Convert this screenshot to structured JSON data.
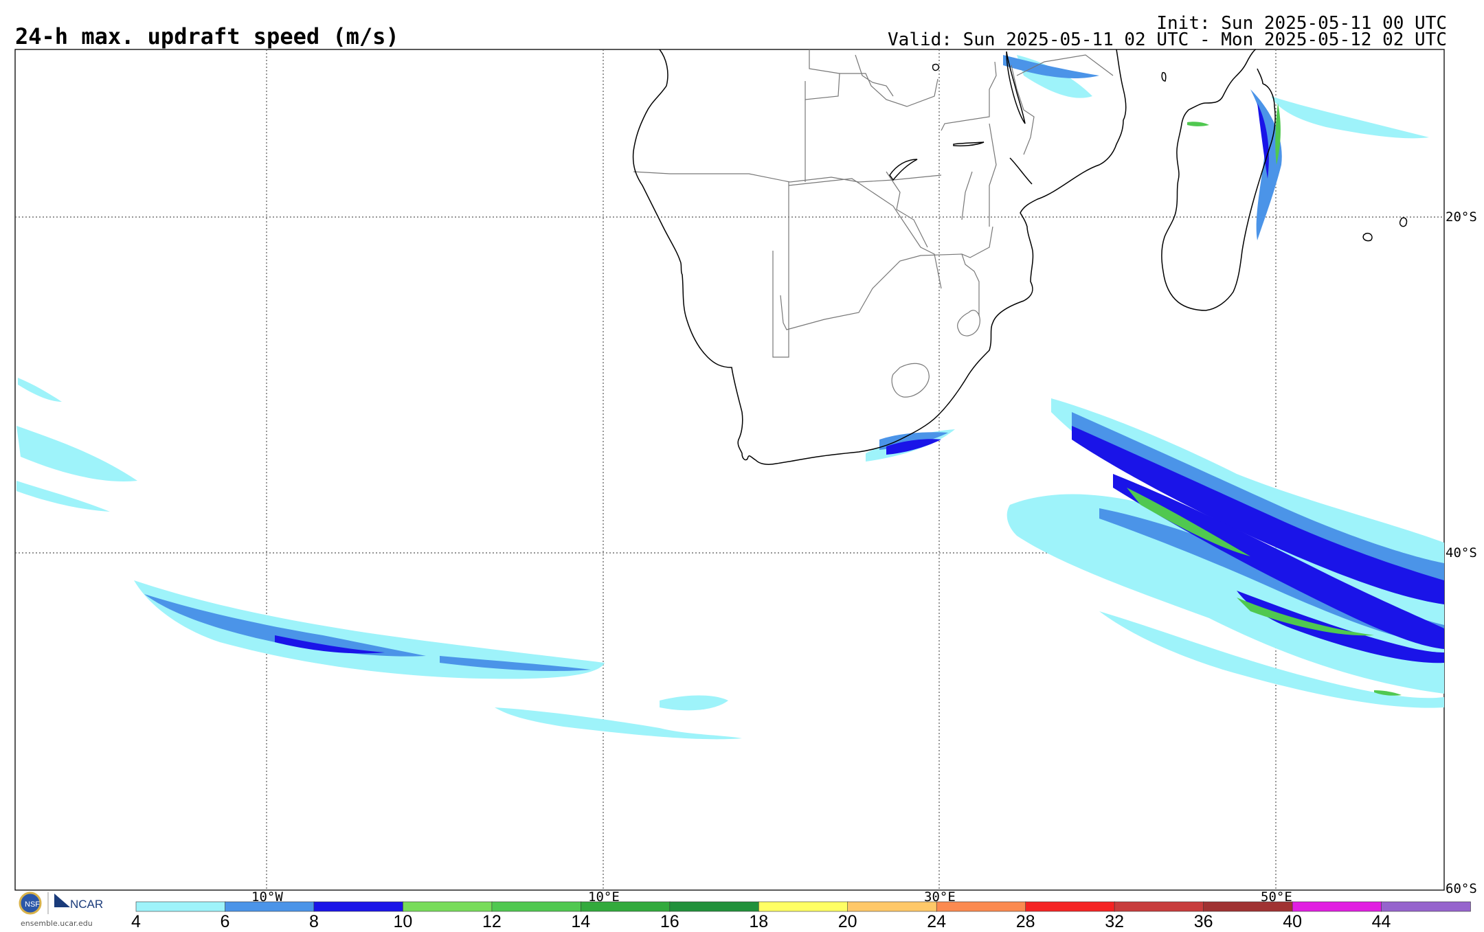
{
  "header": {
    "title": "24-h max. updraft speed (m/s)",
    "init": "Init: Sun 2025-05-11 00 UTC",
    "valid": "Valid: Sun 2025-05-11 02 UTC - Mon 2025-05-12 02 UTC"
  },
  "map": {
    "lon_labels": [
      "10°W",
      "10°E",
      "30°E",
      "50°E"
    ],
    "lat_labels": [
      "20°S",
      "40°S",
      "60°S"
    ],
    "colors": {
      "coast": "#000000",
      "borders": "#777777",
      "grid": "#555555"
    }
  },
  "colorbar": {
    "ticks": [
      "4",
      "6",
      "8",
      "10",
      "12",
      "14",
      "16",
      "18",
      "20",
      "24",
      "28",
      "32",
      "36",
      "40",
      "44"
    ],
    "colors": [
      "#9ef3fa",
      "#4b94e8",
      "#1a14e8",
      "#78dc5a",
      "#50c850",
      "#32aa3c",
      "#21913b",
      "#ffff64",
      "#ffc868",
      "#fb8a50",
      "#f52323",
      "#c83c3c",
      "#a03232",
      "#e11ee1",
      "#9664cd"
    ]
  },
  "footer": {
    "logo_org": "NCAR",
    "logo_url": "ensemble.ucar.edu"
  }
}
